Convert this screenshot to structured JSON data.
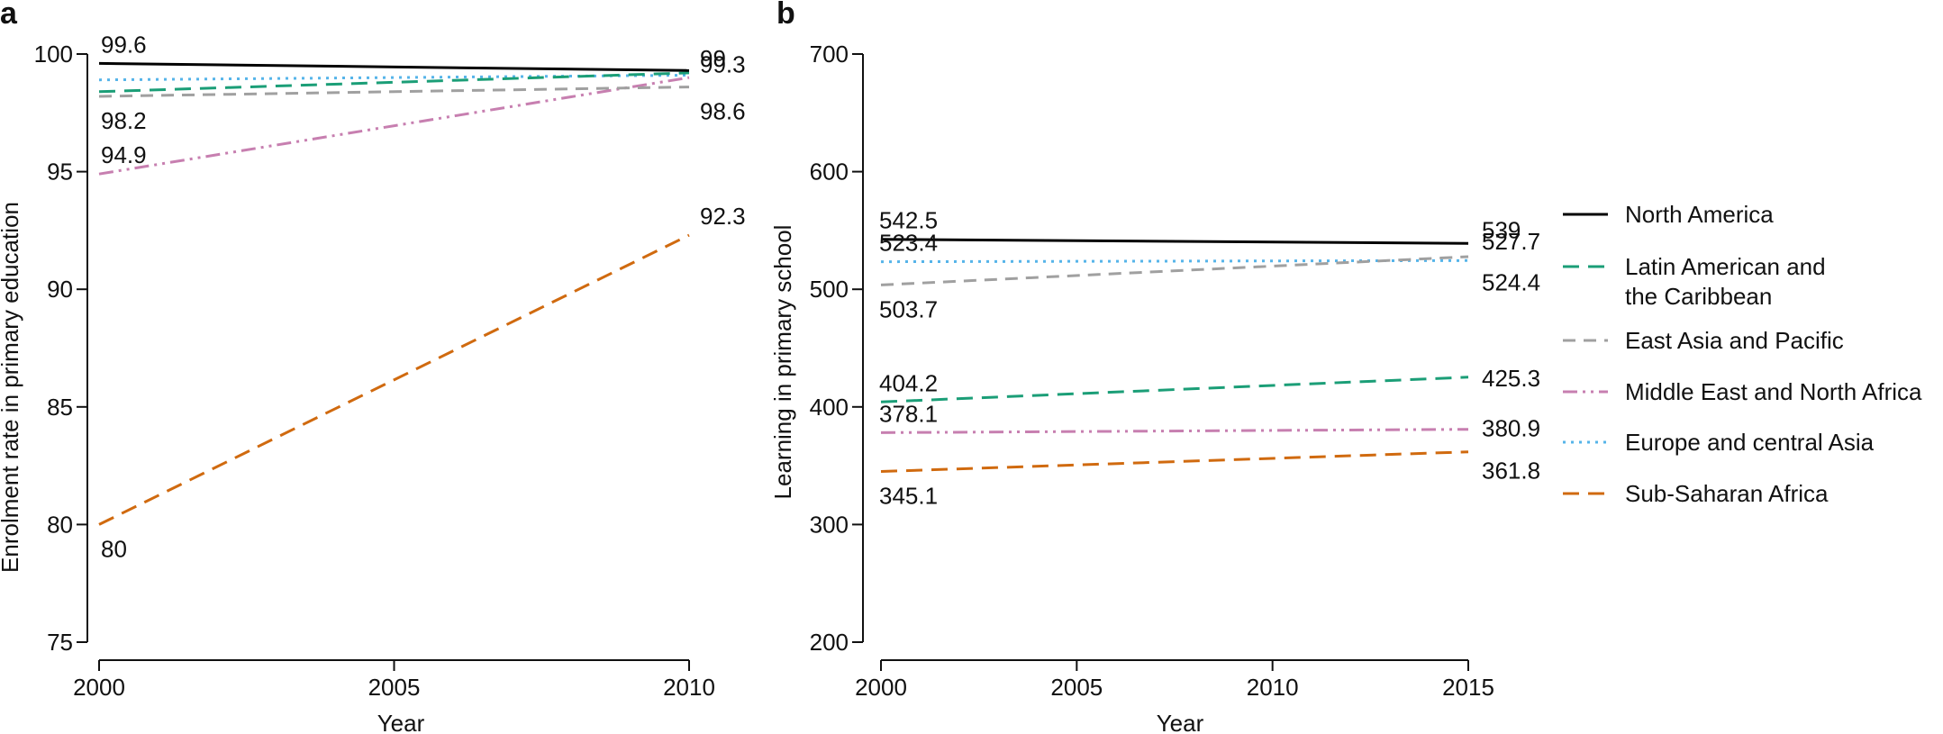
{
  "colors": {
    "north_america": "#000000",
    "latin_america": "#1b9e77",
    "east_asia": "#a0a0a0",
    "middle_east": "#c77fb0",
    "europe": "#56b4e9",
    "sub_saharan": "#d06a0f"
  },
  "legend": {
    "entries": [
      {
        "lines": [
          "North America"
        ],
        "color": "#000000",
        "dash": "solid"
      },
      {
        "lines": [
          "Latin American and",
          "the Caribbean"
        ],
        "color": "#1b9e77",
        "dash": "longdash"
      },
      {
        "lines": [
          "East Asia and Pacific"
        ],
        "color": "#a0a0a0",
        "dash": "dash"
      },
      {
        "lines": [
          "Middle East and North Africa"
        ],
        "color": "#c77fb0",
        "dash": "dashdot"
      },
      {
        "lines": [
          "Europe and central Asia"
        ],
        "color": "#56b4e9",
        "dash": "dot"
      },
      {
        "lines": [
          "Sub-Saharan Africa"
        ],
        "color": "#d06a0f",
        "dash": "longdash"
      }
    ]
  },
  "chart_data": [
    {
      "panel": "a",
      "type": "line",
      "xlabel": "Year",
      "ylabel": "Enrolment rate in primary education",
      "xlim": [
        2000,
        2010
      ],
      "ylim": [
        75,
        100
      ],
      "xticks": [
        2000,
        2005,
        2010
      ],
      "yticks": [
        75,
        80,
        85,
        90,
        95,
        100
      ],
      "series": [
        {
          "key": "north_america",
          "x": [
            2000,
            2010
          ],
          "values": [
            99.6,
            99.3
          ],
          "labels": [
            "99.6",
            "99.3"
          ]
        },
        {
          "key": "latin_america",
          "x": [
            2000,
            2010
          ],
          "values": [
            98.4,
            99.2
          ],
          "labels": [
            "",
            ""
          ]
        },
        {
          "key": "east_asia",
          "x": [
            2000,
            2010
          ],
          "values": [
            98.2,
            98.6
          ],
          "labels": [
            "98.2",
            "98.6"
          ]
        },
        {
          "key": "middle_east",
          "x": [
            2000,
            2010
          ],
          "values": [
            94.9,
            99.0
          ],
          "labels": [
            "94.9",
            "99"
          ]
        },
        {
          "key": "europe",
          "x": [
            2000,
            2010
          ],
          "values": [
            98.9,
            99.1
          ],
          "labels": [
            "",
            ""
          ]
        },
        {
          "key": "sub_saharan",
          "x": [
            2000,
            2010
          ],
          "values": [
            80.0,
            92.3
          ],
          "labels": [
            "80",
            "92.3"
          ]
        }
      ]
    },
    {
      "panel": "b",
      "type": "line",
      "xlabel": "Year",
      "ylabel": "Learning in primary school",
      "xlim": [
        2000,
        2015
      ],
      "ylim": [
        200,
        700
      ],
      "xticks": [
        2000,
        2005,
        2010,
        2015
      ],
      "yticks": [
        200,
        300,
        400,
        500,
        600,
        700
      ],
      "series": [
        {
          "key": "north_america",
          "x": [
            2000,
            2015
          ],
          "values": [
            542.5,
            539.0
          ],
          "labels": [
            "542.5",
            "539"
          ]
        },
        {
          "key": "latin_america",
          "x": [
            2000,
            2015
          ],
          "values": [
            404.2,
            425.3
          ],
          "labels": [
            "404.2",
            "425.3"
          ]
        },
        {
          "key": "east_asia",
          "x": [
            2000,
            2015
          ],
          "values": [
            503.7,
            527.7
          ],
          "labels": [
            "503.7",
            "527.7"
          ]
        },
        {
          "key": "middle_east",
          "x": [
            2000,
            2015
          ],
          "values": [
            378.1,
            380.9
          ],
          "labels": [
            "378.1",
            "380.9"
          ]
        },
        {
          "key": "europe",
          "x": [
            2000,
            2015
          ],
          "values": [
            523.4,
            524.4
          ],
          "labels": [
            "523.4",
            "524.4"
          ]
        },
        {
          "key": "sub_saharan",
          "x": [
            2000,
            2015
          ],
          "values": [
            345.1,
            361.8
          ],
          "labels": [
            "345.1",
            "361.8"
          ]
        }
      ]
    }
  ]
}
